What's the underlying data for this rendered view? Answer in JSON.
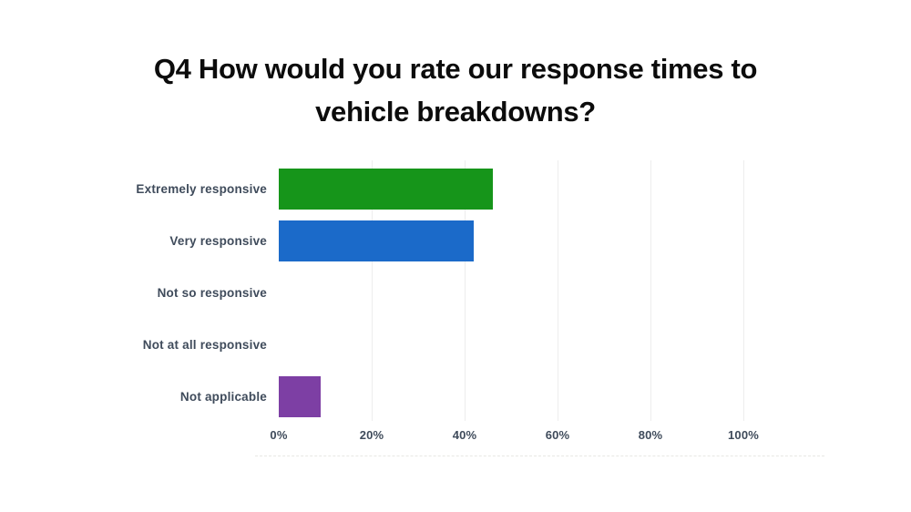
{
  "title": {
    "line1": "Q4 How would you rate our response times to",
    "line2": "vehicle breakdowns?"
  },
  "chart_data": {
    "type": "bar",
    "orientation": "horizontal",
    "title": "Q4 How would you rate our response times to vehicle breakdowns?",
    "categories": [
      "Extremely responsive",
      "Very responsive",
      "Not so responsive",
      "Not at all responsive",
      "Not applicable"
    ],
    "values": [
      46,
      42,
      0,
      0,
      9
    ],
    "unit": "%",
    "x_tick_labels": [
      "0%",
      "20%",
      "40%",
      "60%",
      "80%",
      "100%"
    ],
    "xlim": [
      0,
      100
    ],
    "grid": "faint vertical gridlines at ticks",
    "legend": "none",
    "data_labels": "none (values estimated from axis)",
    "bar_colors": [
      "#16951a",
      "#1b6ac9",
      null,
      null,
      "#7d3fa4"
    ]
  },
  "colors": {
    "background": "#ffffff",
    "title_text": "#0c0c0c",
    "label_text": "#3f4b5b",
    "tick_text": "#3f4b5b",
    "gridline": "#ededed",
    "bar_green": "#16951a",
    "bar_blue": "#1b6ac9",
    "bar_purple": "#7d3fa4"
  }
}
